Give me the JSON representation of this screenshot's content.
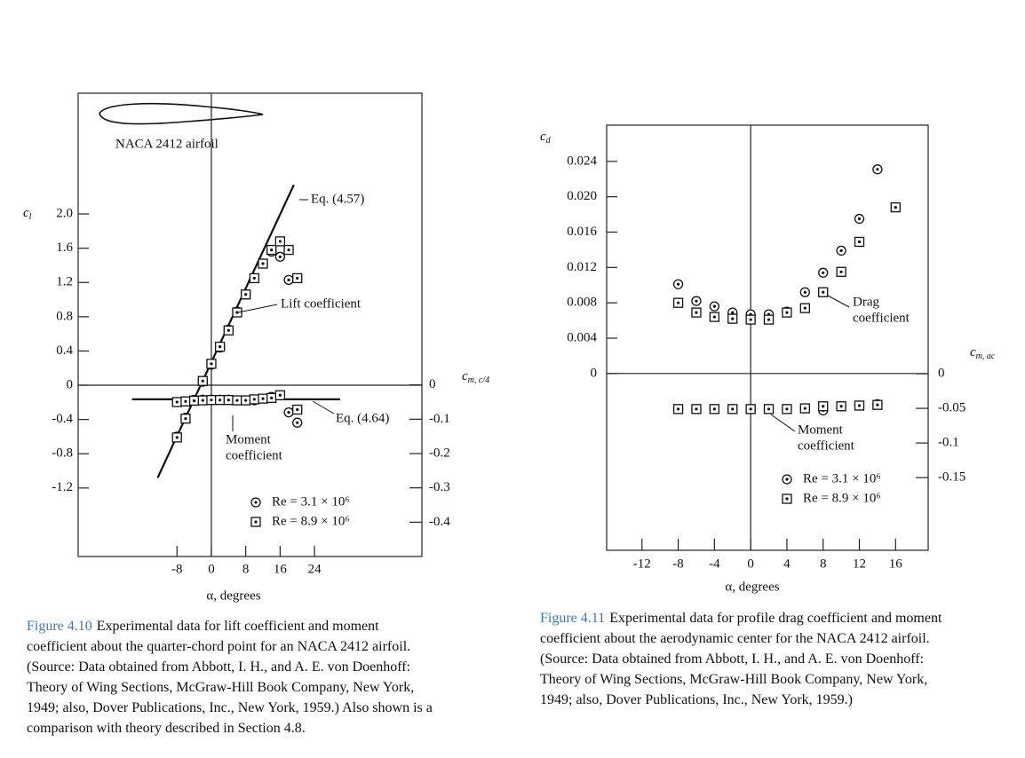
{
  "chart_data": [
    {
      "type": "scatter",
      "ylabel": {
        "symbol": "c",
        "sub": "l"
      },
      "y2label": {
        "symbol": "c",
        "sub": "m, c/4"
      },
      "xlabel": "α, degrees",
      "xlim": [
        -31,
        49
      ],
      "ylim": [
        -2.0,
        3.41
      ],
      "y2lim": [
        -0.5,
        0.85
      ],
      "xticks": [
        -8,
        0,
        8,
        16,
        24
      ],
      "yticks": [
        {
          "value": 2.0,
          "label": "2.0"
        },
        1.6,
        1.2,
        0.8,
        0.4,
        0,
        -0.4,
        -0.8,
        -1.2
      ],
      "y2ticks": [
        0,
        -0.1,
        -0.2,
        -0.3,
        -0.4
      ],
      "series": [
        {
          "name": "Re = 3.1 × 10⁶",
          "marker": "circle",
          "x": [
            -8,
            -6,
            -4,
            -2,
            0,
            2,
            4,
            6,
            8,
            10,
            12,
            14,
            16,
            18
          ],
          "values": [
            -0.6,
            -0.38,
            -0.17,
            0.04,
            0.24,
            0.44,
            0.65,
            0.86,
            1.06,
            1.25,
            1.42,
            1.56,
            1.5,
            1.23
          ]
        },
        {
          "name": "Re = 8.9 × 10⁶",
          "marker": "box",
          "x": [
            -8,
            -6,
            -4,
            -2,
            0,
            2,
            4,
            6,
            8,
            10,
            12,
            14,
            16,
            18,
            20
          ],
          "values": [
            -0.61,
            -0.39,
            -0.18,
            0.05,
            0.25,
            0.45,
            0.64,
            0.85,
            1.06,
            1.25,
            1.42,
            1.58,
            1.68,
            1.58,
            1.25
          ]
        },
        {
          "marker": "circle",
          "axis": "y2",
          "x": [
            -8,
            -6,
            -4,
            -2,
            0,
            2,
            4,
            6,
            8,
            10,
            12,
            14,
            18,
            20
          ],
          "values": [
            -0.05,
            -0.048,
            -0.045,
            -0.043,
            -0.043,
            -0.043,
            -0.043,
            -0.045,
            -0.045,
            -0.045,
            -0.04,
            -0.035,
            -0.08,
            -0.11
          ]
        },
        {
          "marker": "box",
          "axis": "y2",
          "x": [
            -8,
            -6,
            -4,
            -2,
            0,
            2,
            4,
            6,
            8,
            10,
            12,
            14,
            16,
            20
          ],
          "values": [
            -0.05,
            -0.048,
            -0.046,
            -0.045,
            -0.044,
            -0.044,
            -0.044,
            -0.045,
            -0.045,
            -0.042,
            -0.04,
            -0.038,
            -0.03,
            -0.072
          ]
        }
      ],
      "lines": [
        {
          "label": "Eq. (4.57)",
          "x": [
            -12.5,
            19.2
          ],
          "values": [
            -1.08,
            2.34
          ]
        },
        {
          "label": "Eq. (4.64)",
          "axis": "y2",
          "x": [
            -18.5,
            30
          ],
          "values": [
            -0.042,
            -0.042
          ]
        }
      ],
      "annotations": [
        {
          "lines": [
            "NACA 2412 airfoil"
          ]
        },
        {
          "lines": [
            "Lift coefficient"
          ]
        },
        {
          "lines": [
            "Moment",
            "coefficient"
          ]
        }
      ],
      "caption": {
        "label": "Figure 4.10",
        "lines": [
          "Experimental data for lift coefficient and moment",
          "coefficient about the quarter-chord point for an NACA 2412 airfoil.",
          "(Source: Data obtained from Abbott, I. H., and A. E. von Doenhoff:",
          "Theory of Wing Sections, McGraw-Hill Book Company, New York,",
          "1949; also, Dover Publications, Inc., New York, 1959.) Also shown is a",
          "comparison with theory described in Section 4.8."
        ]
      }
    },
    {
      "type": "scatter",
      "ylabel": {
        "symbol": "c",
        "sub": "d"
      },
      "y2label": {
        "symbol": "c",
        "sub": "m, ac"
      },
      "xlabel": "α, degrees",
      "xlim": [
        -15.9,
        19.6
      ],
      "ylim": [
        -0.02,
        0.0281
      ],
      "y2lim": [
        -0.255,
        0.359
      ],
      "xticks": [
        -12,
        -8,
        -4,
        0,
        4,
        8,
        12,
        16
      ],
      "yticks": [
        0.024,
        {
          "value": 0.02,
          "label": "0.020"
        },
        0.016,
        0.012,
        0.008,
        0.004,
        0
      ],
      "y2ticks": [
        0,
        -0.05,
        -0.1,
        -0.15
      ],
      "series": [
        {
          "name": "Re = 3.1 × 10⁶",
          "marker": "circle",
          "x": [
            -8,
            -6,
            -4,
            -2,
            0,
            2,
            4,
            6,
            8,
            10,
            12,
            14
          ],
          "values": [
            0.0101,
            0.0082,
            0.0076,
            0.0069,
            0.0067,
            0.0067,
            0.007,
            0.0092,
            0.0114,
            0.0139,
            0.0175,
            0.0231
          ]
        },
        {
          "name": "Re = 8.9 × 10⁶",
          "marker": "box",
          "x": [
            -8,
            -6,
            -4,
            -2,
            0,
            2,
            4,
            6,
            8,
            10,
            12,
            16
          ],
          "values": [
            0.008,
            0.0069,
            0.0064,
            0.0062,
            0.0061,
            0.0061,
            0.0069,
            0.0074,
            0.0092,
            0.0115,
            0.0149,
            0.0188
          ]
        },
        {
          "marker": "circle",
          "axis": "y2",
          "x": [
            -8,
            -6,
            -4,
            -2,
            0,
            2,
            4,
            6,
            8,
            10,
            12,
            14
          ],
          "values": [
            -0.051,
            -0.051,
            -0.051,
            -0.051,
            -0.051,
            -0.051,
            -0.051,
            -0.05,
            -0.053,
            -0.047,
            -0.046,
            -0.044
          ]
        },
        {
          "marker": "box",
          "axis": "y2",
          "x": [
            -8,
            -6,
            -4,
            -2,
            0,
            2,
            4,
            6,
            8,
            10,
            12,
            14
          ],
          "values": [
            -0.051,
            -0.051,
            -0.051,
            -0.051,
            -0.051,
            -0.051,
            -0.051,
            -0.05,
            -0.047,
            -0.047,
            -0.046,
            -0.045
          ]
        }
      ],
      "lines": [],
      "annotations": [
        {
          "lines": [
            "Drag",
            "coefficient"
          ]
        },
        {
          "lines": [
            "Moment",
            "coefficient"
          ]
        }
      ],
      "caption": {
        "label": "Figure 4.11",
        "lines": [
          "Experimental data for profile drag coefficient and moment",
          "coefficient about the aerodynamic center for the NACA 2412 airfoil.",
          "(Source: Data obtained from Abbott, I. H., and A. E. von Doenhoff:",
          "Theory of Wing Sections, McGraw-Hill Book Company, New York,",
          "1949; also, Dover Publications, Inc., New York, 1959.)"
        ]
      }
    }
  ]
}
